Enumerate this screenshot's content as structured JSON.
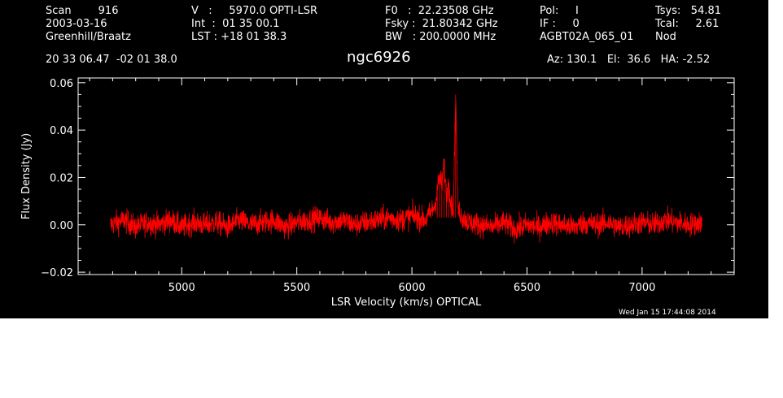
{
  "header": {
    "col1": [
      "Scan        916",
      "2003-03-16",
      "Greenhill/Braatz"
    ],
    "col2": [
      "V   :     5970.0 OPTI-LSR",
      "Int  :  01 35 00.1",
      "LST : +18 01 38.3"
    ],
    "col3": [
      "F0   :  22.23508 GHz",
      "Fsky :  21.80342 GHz",
      "BW   : 200.0000 MHz"
    ],
    "col4": [
      "Pol:     I",
      "IF :     0",
      "AGBT02A_065_01"
    ],
    "col5": [
      "Tsys:   54.81",
      "Tcal:     2.61",
      "Nod"
    ],
    "coords": "20 33 06.47  -02 01 38.0",
    "azel": "Az: 130.1   El:  36.6   HA: -2.52"
  },
  "timestamp": "Wed Jan 15 17:44:08 2014",
  "chart_data": {
    "type": "line",
    "title": "ngc6926",
    "xlabel": "LSR Velocity (km/s) OPTICAL",
    "ylabel": "Flux Density (Jy)",
    "xlim": [
      4550,
      7400
    ],
    "ylim": [
      -0.021,
      0.062
    ],
    "xticks": [
      5000,
      5500,
      6000,
      6500,
      7000
    ],
    "xtick_labels": [
      "5000",
      "5500",
      "6000",
      "6500",
      "7000"
    ],
    "yticks": [
      -0.02,
      0.0,
      0.02,
      0.04,
      0.06
    ],
    "ytick_labels": [
      "−0.02",
      "0.00",
      "0.02",
      "0.04",
      "0.06"
    ],
    "grid": false,
    "colors": {
      "background": "#000000",
      "axes": "#ffffff",
      "series": "#ff0000"
    },
    "series": [
      {
        "x": [
          4690,
          4750,
          4800,
          4850,
          4900,
          4950,
          5000,
          5050,
          5100,
          5150,
          5200,
          5250,
          5300,
          5350,
          5400,
          5450,
          5500,
          5550,
          5600,
          5650,
          5700,
          5750,
          5800,
          5850,
          5900,
          5950,
          6000,
          6030,
          6060,
          6080,
          6100,
          6110,
          6120,
          6130,
          6140,
          6150,
          6160,
          6170,
          6180,
          6190,
          6200,
          6220,
          6250,
          6300,
          6350,
          6400,
          6450,
          6500,
          6550,
          6600,
          6650,
          6700,
          6750,
          6800,
          6850,
          6900,
          6950,
          7000,
          7050,
          7100,
          7150,
          7200,
          7260
        ],
        "y": [
          0.0,
          0.002,
          -0.001,
          0.001,
          0.0,
          0.002,
          -0.001,
          0.001,
          0.0,
          0.001,
          -0.001,
          0.002,
          0.0,
          0.001,
          0.002,
          -0.001,
          0.001,
          0.002,
          0.003,
          0.001,
          0.002,
          0.0,
          0.001,
          0.002,
          0.003,
          0.002,
          0.004,
          0.003,
          0.002,
          0.005,
          0.008,
          0.015,
          0.02,
          0.017,
          0.026,
          0.012,
          0.018,
          0.01,
          0.006,
          0.055,
          0.007,
          0.003,
          0.001,
          0.0,
          -0.001,
          0.001,
          -0.002,
          0.0,
          -0.001,
          0.001,
          0.0,
          -0.001,
          0.001,
          0.0,
          0.001,
          -0.001,
          0.0,
          0.001,
          0.0,
          0.002,
          0.001,
          0.0,
          0.001
        ]
      }
    ],
    "noise_rms": 0.0025
  }
}
